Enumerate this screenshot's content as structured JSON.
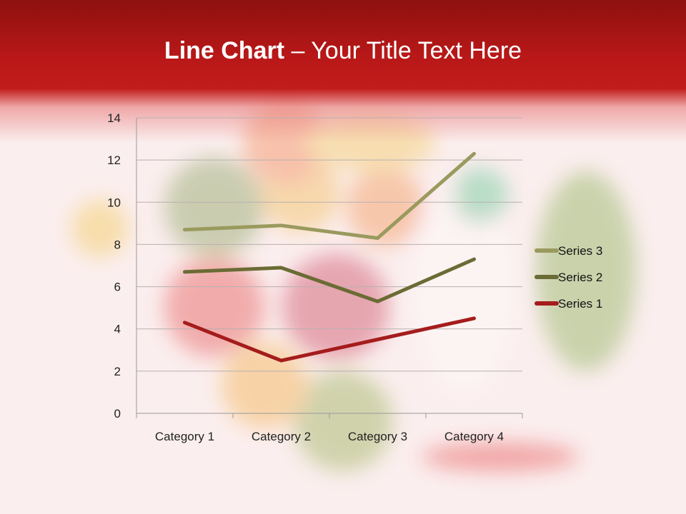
{
  "slide": {
    "title_bold": "Line Chart",
    "title_rest": " – Your Title Text Here",
    "accent_color": "#c21c1c"
  },
  "chart_data": {
    "type": "line",
    "stacked": true,
    "categories": [
      "Category 1",
      "Category 2",
      "Category 3",
      "Category 4"
    ],
    "series": [
      {
        "name": "Series 1",
        "values": [
          4.3,
          2.5,
          3.5,
          4.5
        ],
        "color": "#a51c1c"
      },
      {
        "name": "Series 2",
        "values": [
          2.4,
          4.4,
          1.8,
          2.8
        ],
        "color": "#6b6b35"
      },
      {
        "name": "Series 3",
        "values": [
          2,
          2,
          3,
          5
        ],
        "color": "#9a9a5e"
      }
    ],
    "ylim": [
      0,
      14
    ],
    "yticks": [
      "0",
      "2",
      "4",
      "6",
      "8",
      "10",
      "12",
      "14"
    ],
    "grid": true,
    "legend": "right"
  }
}
